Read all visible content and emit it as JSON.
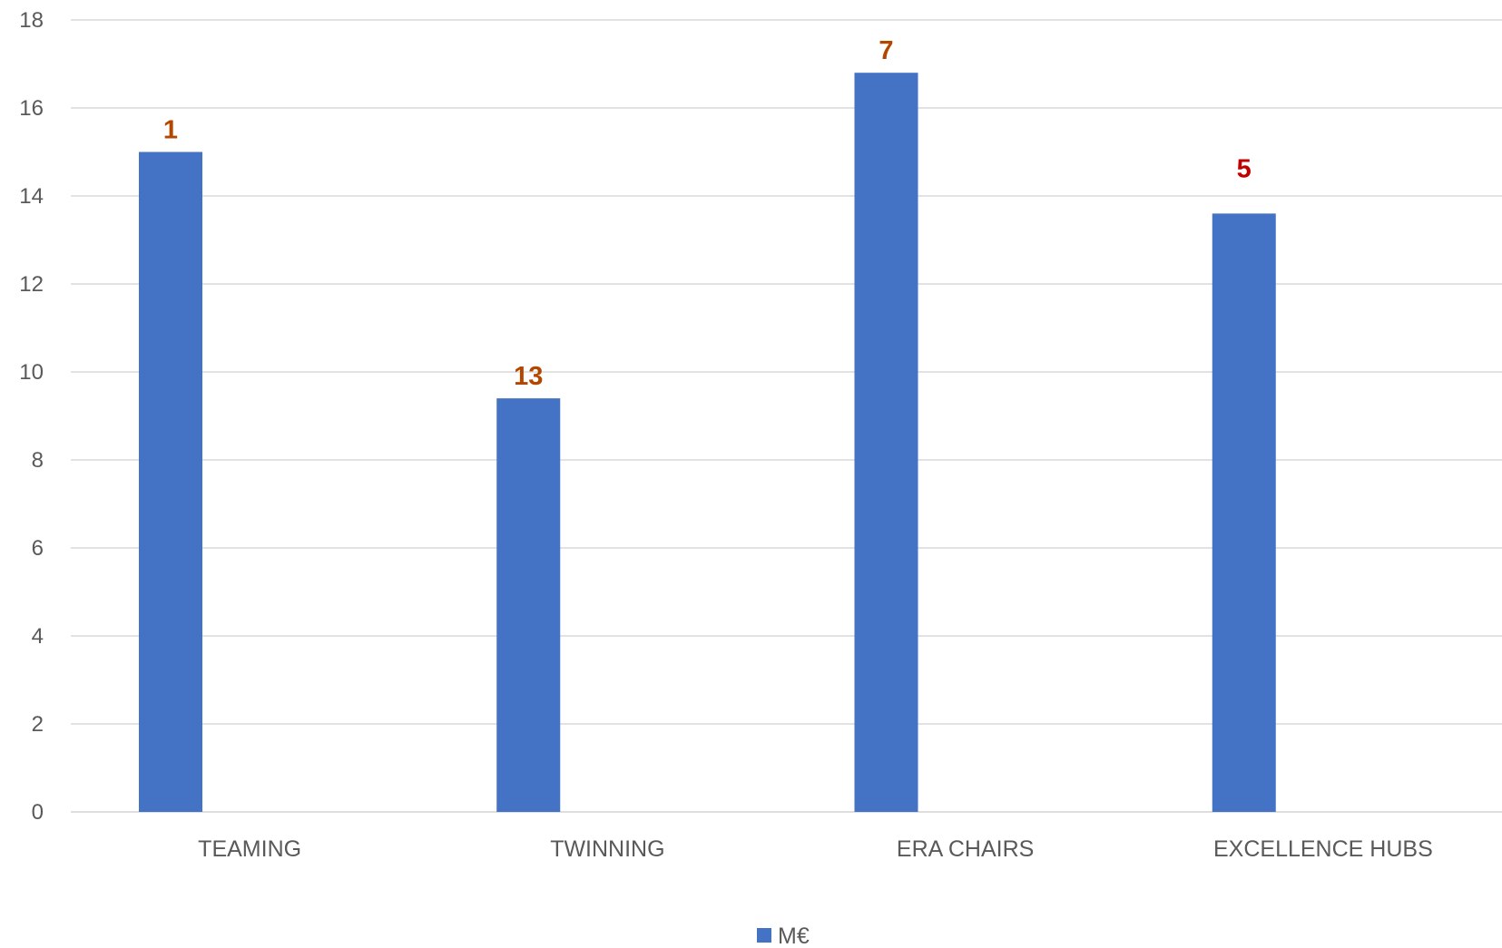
{
  "chart_data": {
    "type": "bar",
    "categories": [
      "TEAMING",
      "TWINNING",
      "ERA CHAIRS",
      "EXCELLENCE HUBS"
    ],
    "series": [
      {
        "name": "M€",
        "values": [
          15,
          9.4,
          16.8,
          13.6
        ],
        "color": "#4472C4"
      }
    ],
    "data_labels": [
      "1",
      "13",
      "7",
      "5"
    ],
    "data_label_colors": [
      "#B34700",
      "#B34700",
      "#B34700",
      "#C00000"
    ],
    "y_ticks": [
      "0",
      "2",
      "4",
      "6",
      "8",
      "10",
      "12",
      "14",
      "16",
      "18"
    ],
    "ylim": [
      0,
      18
    ],
    "grid": true,
    "legend": {
      "position": "bottom",
      "entries": [
        "M€"
      ]
    },
    "title": "",
    "xlabel": "",
    "ylabel": ""
  },
  "colors": {
    "bar": "#4472C4",
    "grid": "#D9D9D9",
    "axis_text": "#595959"
  }
}
